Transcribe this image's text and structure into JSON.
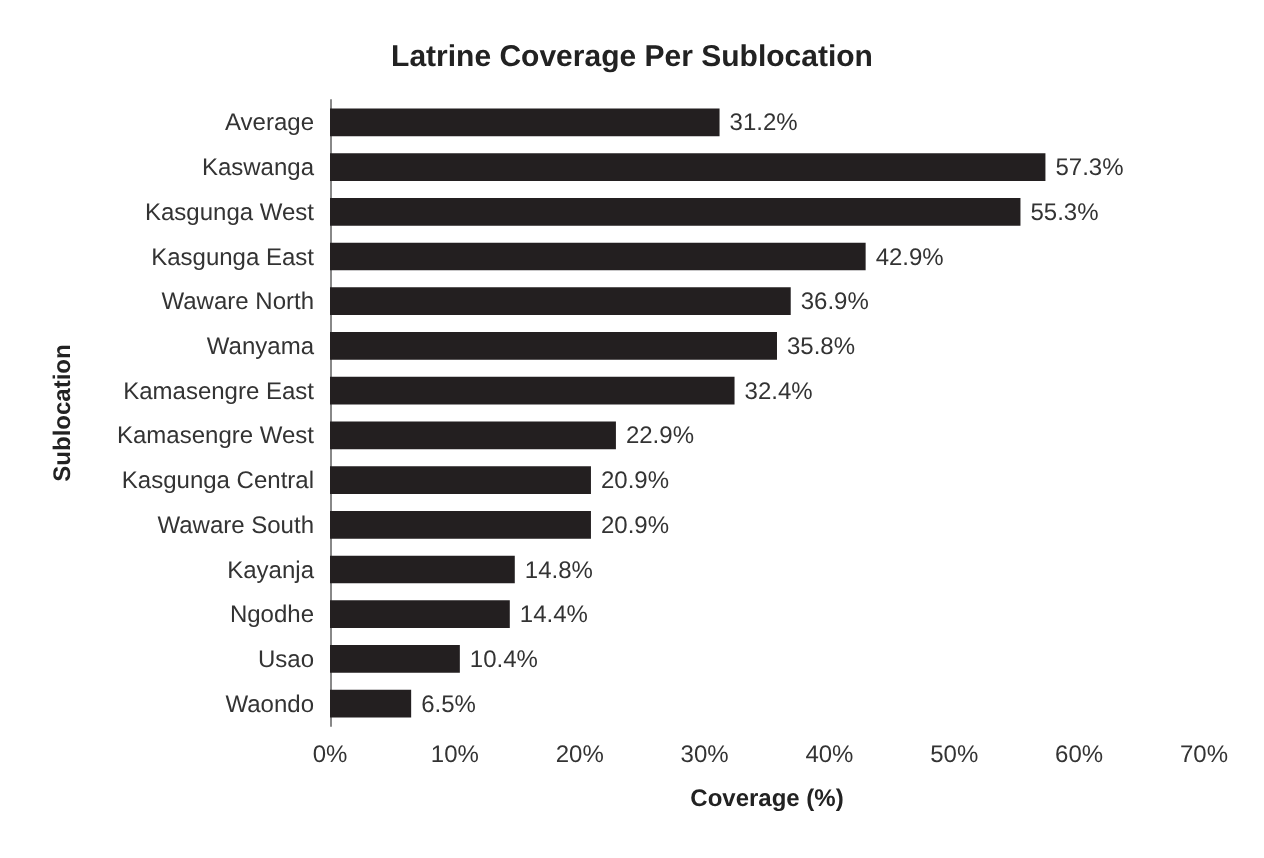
{
  "chart_data": {
    "type": "bar",
    "orientation": "horizontal",
    "title": "Latrine Coverage Per Sublocation",
    "xlabel": "Coverage (%)",
    "ylabel": "Sublocation",
    "categories": [
      "Average",
      "Kaswanga",
      "Kasgunga West",
      "Kasgunga East",
      "Waware North",
      "Wanyama",
      "Kamasengre East",
      "Kamasengre West",
      "Kasgunga Central",
      "Waware South",
      "Kayanja",
      "Ngodhe",
      "Usao",
      "Waondo"
    ],
    "values": [
      31.2,
      57.3,
      55.3,
      42.9,
      36.9,
      35.8,
      32.4,
      22.9,
      20.9,
      20.9,
      14.8,
      14.4,
      10.4,
      6.5
    ],
    "value_labels": [
      "31.2%",
      "57.3%",
      "55.3%",
      "42.9%",
      "36.9%",
      "35.8%",
      "32.4%",
      "22.9%",
      "20.9%",
      "20.9%",
      "14.8%",
      "14.4%",
      "10.4%",
      "6.5%"
    ],
    "color": "#231f20",
    "xlim": [
      0,
      70
    ],
    "xticks": [
      {
        "value": 0,
        "label": "0%"
      },
      {
        "value": 10,
        "label": "10%"
      },
      {
        "value": 20,
        "label": "20%"
      },
      {
        "value": 30,
        "label": "30%"
      },
      {
        "value": 40,
        "label": "40%"
      },
      {
        "value": 50,
        "label": "50%"
      },
      {
        "value": 60,
        "label": "60%"
      },
      {
        "value": 70,
        "label": "70%"
      }
    ],
    "grid": false
  }
}
